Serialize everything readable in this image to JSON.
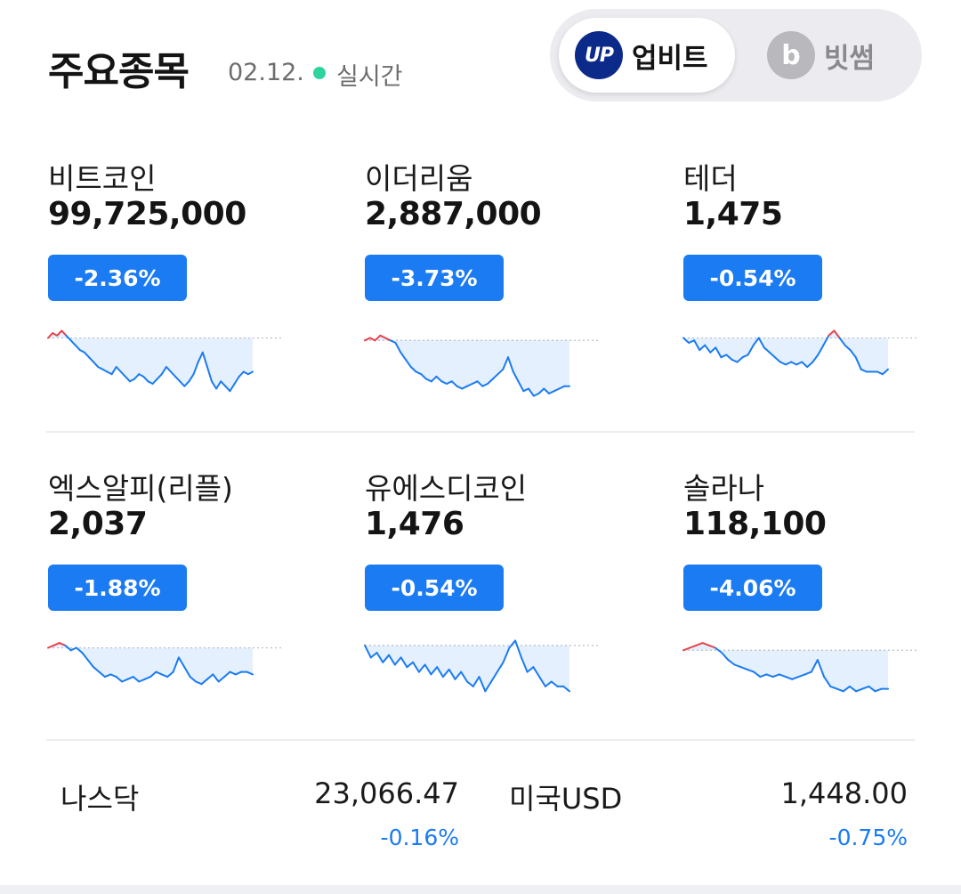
{
  "header": {
    "title": "주요종목",
    "date": "02.12.",
    "live_label": "실시간"
  },
  "exchange_toggle": {
    "upbit": {
      "label": "업비트",
      "logo_text": "UP",
      "selected": true
    },
    "bithumb": {
      "label": "빗썸",
      "logo_text": "b",
      "selected": false
    }
  },
  "colors": {
    "accent_blue": "#1b7bf2",
    "rise_red": "#e8434a",
    "live_green": "#2fd3a0",
    "upbit_navy": "#0b2a8a"
  },
  "coins": [
    {
      "name": "비트코인",
      "price": "99,725,000",
      "change": "-2.36%",
      "spark": [
        0.98,
        1.0,
        0.99,
        1.01,
        0.99,
        0.97,
        0.95,
        0.93,
        0.92,
        0.9,
        0.88,
        0.86,
        0.85,
        0.84,
        0.83,
        0.86,
        0.84,
        0.82,
        0.8,
        0.81,
        0.83,
        0.82,
        0.8,
        0.79,
        0.81,
        0.83,
        0.86,
        0.84,
        0.82,
        0.8,
        0.78,
        0.8,
        0.83,
        0.88,
        0.92,
        0.86,
        0.8,
        0.77,
        0.8,
        0.78,
        0.76,
        0.79,
        0.82,
        0.84,
        0.83,
        0.84
      ]
    },
    {
      "name": "이더리움",
      "price": "2,887,000",
      "change": "-3.73%",
      "spark": [
        0.97,
        0.98,
        0.97,
        0.99,
        0.98,
        0.97,
        0.96,
        0.92,
        0.89,
        0.86,
        0.84,
        0.83,
        0.81,
        0.8,
        0.82,
        0.8,
        0.79,
        0.8,
        0.78,
        0.77,
        0.78,
        0.79,
        0.8,
        0.78,
        0.79,
        0.81,
        0.83,
        0.85,
        0.9,
        0.84,
        0.8,
        0.76,
        0.77,
        0.74,
        0.75,
        0.77,
        0.75,
        0.76,
        0.77,
        0.78,
        0.78
      ]
    },
    {
      "name": "테더",
      "price": "1,475",
      "change": "-0.54%",
      "spark": [
        0.98,
        0.96,
        0.97,
        0.93,
        0.95,
        0.92,
        0.94,
        0.9,
        0.91,
        0.89,
        0.88,
        0.9,
        0.91,
        0.95,
        0.98,
        0.94,
        0.92,
        0.9,
        0.88,
        0.87,
        0.88,
        0.87,
        0.88,
        0.86,
        0.88,
        0.91,
        0.95,
        0.99,
        1.01,
        0.98,
        0.95,
        0.93,
        0.9,
        0.85,
        0.84,
        0.84,
        0.84,
        0.83,
        0.85
      ]
    },
    {
      "name": "엑스알피(리플)",
      "price": "2,037",
      "change": "-1.88%",
      "spark": [
        0.98,
        0.99,
        1.0,
        0.99,
        0.97,
        0.98,
        0.96,
        0.93,
        0.9,
        0.88,
        0.86,
        0.87,
        0.86,
        0.84,
        0.85,
        0.86,
        0.84,
        0.85,
        0.86,
        0.88,
        0.87,
        0.86,
        0.88,
        0.94,
        0.9,
        0.86,
        0.84,
        0.83,
        0.85,
        0.87,
        0.84,
        0.86,
        0.88,
        0.87,
        0.88,
        0.88,
        0.87
      ]
    },
    {
      "name": "유에스디코인",
      "price": "1,476",
      "change": "-0.54%",
      "spark": [
        0.99,
        0.94,
        0.96,
        0.92,
        0.95,
        0.91,
        0.94,
        0.9,
        0.92,
        0.88,
        0.91,
        0.87,
        0.9,
        0.86,
        0.89,
        0.85,
        0.88,
        0.84,
        0.82,
        0.86,
        0.8,
        0.84,
        0.88,
        0.92,
        0.98,
        1.01,
        0.94,
        0.88,
        0.9,
        0.86,
        0.82,
        0.84,
        0.82,
        0.82,
        0.8
      ]
    },
    {
      "name": "솔라나",
      "price": "118,100",
      "change": "-4.06%",
      "spark": [
        0.97,
        0.98,
        0.99,
        1.0,
        0.99,
        0.98,
        0.96,
        0.93,
        0.91,
        0.9,
        0.89,
        0.88,
        0.86,
        0.87,
        0.86,
        0.87,
        0.86,
        0.85,
        0.86,
        0.87,
        0.88,
        0.93,
        0.86,
        0.82,
        0.81,
        0.8,
        0.82,
        0.8,
        0.81,
        0.82,
        0.8,
        0.81,
        0.81
      ]
    }
  ],
  "indices": [
    {
      "name": "나스닥",
      "value": "23,066.47",
      "change": "-0.16%"
    },
    {
      "name": "미국USD",
      "value": "1,448.00",
      "change": "-0.75%"
    }
  ]
}
